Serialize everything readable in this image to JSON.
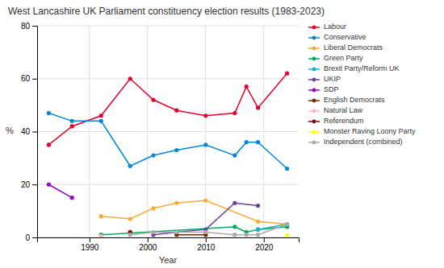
{
  "chart_data": {
    "type": "line",
    "title": "West Lancashire UK Parliament constituency election results (1983-2023)",
    "xlabel": "Year",
    "ylabel": "%",
    "xlim": [
      1981,
      2026
    ],
    "xticks": [
      1990,
      2000,
      2010,
      2020
    ],
    "ylim": [
      0,
      80
    ],
    "yticks": [
      0,
      20,
      40,
      60,
      80
    ],
    "grid": true,
    "legend": "right",
    "marker": "circle",
    "series": [
      {
        "name": "Labour",
        "color": "#e8002b",
        "x": [
          1983,
          1987,
          1992,
          1997,
          2001,
          2005,
          2010,
          2015,
          2017,
          2019,
          2024
        ],
        "values": [
          35,
          42,
          46,
          60,
          52,
          48,
          46,
          47,
          57,
          49,
          62
        ]
      },
      {
        "name": "Conservative",
        "color": "#0087dc",
        "x": [
          1983,
          1987,
          1992,
          1997,
          2001,
          2005,
          2010,
          2015,
          2017,
          2019,
          2024
        ],
        "values": [
          47,
          44,
          44,
          27,
          31,
          33,
          35,
          31,
          36,
          36,
          26
        ]
      },
      {
        "name": "Liberal Democrats",
        "color": "#fdaa33",
        "x": [
          1992,
          1997,
          2001,
          2005,
          2010,
          2019,
          2024
        ],
        "values": [
          8,
          7,
          11,
          13,
          14,
          6,
          5
        ]
      },
      {
        "name": "Green Party",
        "color": "#02a95b",
        "x": [
          1992,
          2015,
          2017,
          2019,
          2024
        ],
        "values": [
          1,
          4,
          2,
          3,
          4
        ]
      },
      {
        "name": "Brexit Party/Reform UK",
        "color": "#12b6cf",
        "x": [
          2019,
          2024
        ],
        "values": [
          3,
          5
        ]
      },
      {
        "name": "UKIP",
        "color": "#6e3fa3",
        "x": [
          2001,
          2005,
          2010,
          2015,
          2019
        ],
        "values": [
          1,
          2,
          3,
          13,
          12
        ]
      },
      {
        "name": "SDP",
        "color": "#9900cc",
        "x": [
          1983,
          1987
        ],
        "values": [
          20,
          15
        ]
      },
      {
        "name": "English Democrats",
        "color": "#6e2c00",
        "x": [
          2005,
          2010
        ],
        "values": [
          1,
          1
        ]
      },
      {
        "name": "Natural Law",
        "color": "#ffb6c1",
        "x": [
          1992
        ],
        "values": [
          0.5
        ]
      },
      {
        "name": "Referendum",
        "color": "#8b0000",
        "x": [
          1997
        ],
        "values": [
          2
        ]
      },
      {
        "name": "Monster Raving Loony Party",
        "color": "#ffff00",
        "x": [
          2024
        ],
        "values": [
          0.8
        ]
      },
      {
        "name": "Independent (combined)",
        "color": "#aaaaaa",
        "x": [
          1997,
          2001,
          2005,
          2010,
          2015,
          2017,
          2019,
          2024
        ],
        "values": [
          1,
          2,
          2,
          2,
          1,
          1,
          1,
          5
        ]
      }
    ]
  }
}
